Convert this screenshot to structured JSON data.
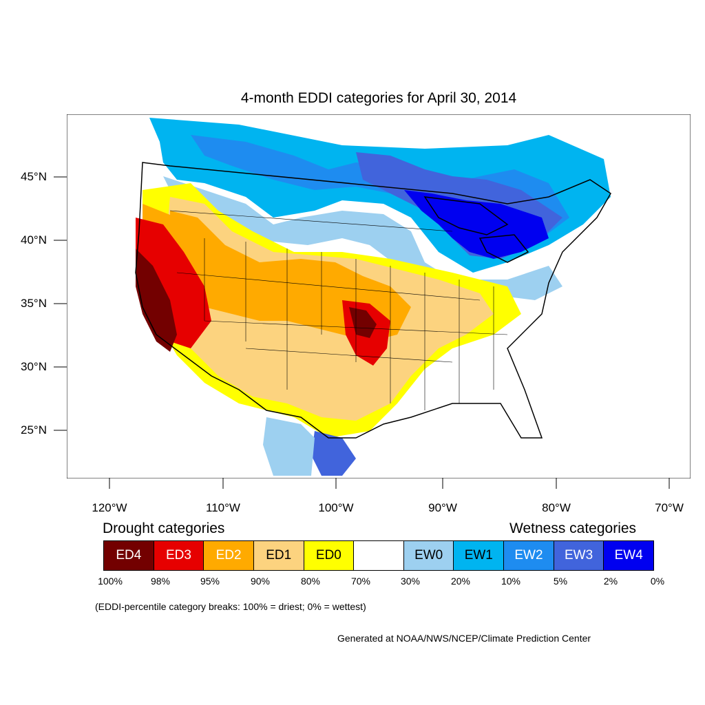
{
  "title": "4-month EDDI categories for April 30, 2014",
  "axes": {
    "lat_labels": [
      "45°N",
      "40°N",
      "35°N",
      "30°N",
      "25°N"
    ],
    "lon_labels": [
      "120°W",
      "110°W",
      "100°W",
      "90°W",
      "80°W",
      "70°W"
    ]
  },
  "legend": {
    "drought_heading": "Drought categories",
    "wetness_heading": "Wetness categories",
    "categories": [
      {
        "label": "ED4",
        "color": "#730000",
        "text_color": "#ffffff"
      },
      {
        "label": "ED3",
        "color": "#e60000",
        "text_color": "#ffffff"
      },
      {
        "label": "ED2",
        "color": "#ffaa00",
        "text_color": "#ffffff"
      },
      {
        "label": "ED1",
        "color": "#fcd37f",
        "text_color": "#000000"
      },
      {
        "label": "ED0",
        "color": "#ffff00",
        "text_color": "#000000"
      },
      {
        "label": "",
        "color": "#ffffff",
        "text_color": "#000000"
      },
      {
        "label": "EW0",
        "color": "#9dd0f0",
        "text_color": "#000000"
      },
      {
        "label": "EW1",
        "color": "#00b4f0",
        "text_color": "#000000"
      },
      {
        "label": "EW2",
        "color": "#1e8cf0",
        "text_color": "#ffffff"
      },
      {
        "label": "EW3",
        "color": "#4164dc",
        "text_color": "#ffffff"
      },
      {
        "label": "EW4",
        "color": "#0000f0",
        "text_color": "#ffffff"
      }
    ],
    "breaks": [
      "100%",
      "98%",
      "95%",
      "90%",
      "80%",
      "70%",
      "30%",
      "20%",
      "10%",
      "5%",
      "2%",
      "0%"
    ]
  },
  "footnote": "(EDDI-percentile category breaks: 100% = driest; 0% = wettest)",
  "credit": "Generated at NOAA/NWS/NCEP/Climate Prediction Center",
  "map": {
    "region": "Contiguous United States",
    "palette": {
      "ocean": "#ffffff",
      "ED4": "#730000",
      "ED3": "#e60000",
      "ED2": "#ffaa00",
      "ED1": "#fcd37f",
      "ED0": "#ffff00",
      "EW0": "#9dd0f0",
      "EW1": "#00b4f0",
      "EW2": "#1e8cf0",
      "EW3": "#4164dc",
      "EW4": "#0000f0"
    }
  }
}
